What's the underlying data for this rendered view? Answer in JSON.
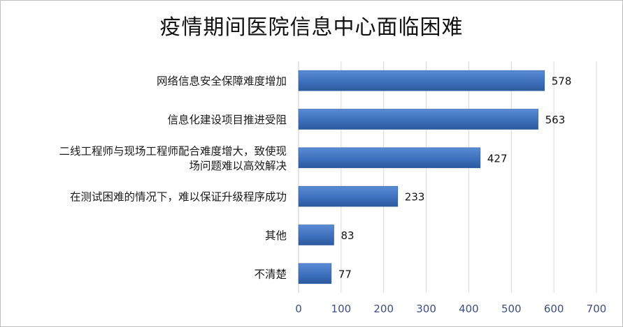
{
  "chart_data": {
    "type": "bar",
    "orientation": "horizontal",
    "title": "疫情期间医院信息中心面临困难",
    "categories": [
      [
        "网络信息安全保障难度增加"
      ],
      [
        "信息化建设项目推进受阻"
      ],
      [
        "二线工程师与现场工程师配合难度增大，致使现",
        "场问题难以高效解决"
      ],
      [
        "在测试困难的情况下，难以保证升级程序成功"
      ],
      [
        "其他"
      ],
      [
        "不清楚"
      ]
    ],
    "values": [
      578,
      563,
      427,
      233,
      83,
      77
    ],
    "xlim": [
      0,
      700
    ],
    "ticks": [
      0,
      100,
      200,
      300,
      400,
      500,
      600,
      700
    ],
    "grid": true,
    "bar_color": "#3f70bd"
  }
}
